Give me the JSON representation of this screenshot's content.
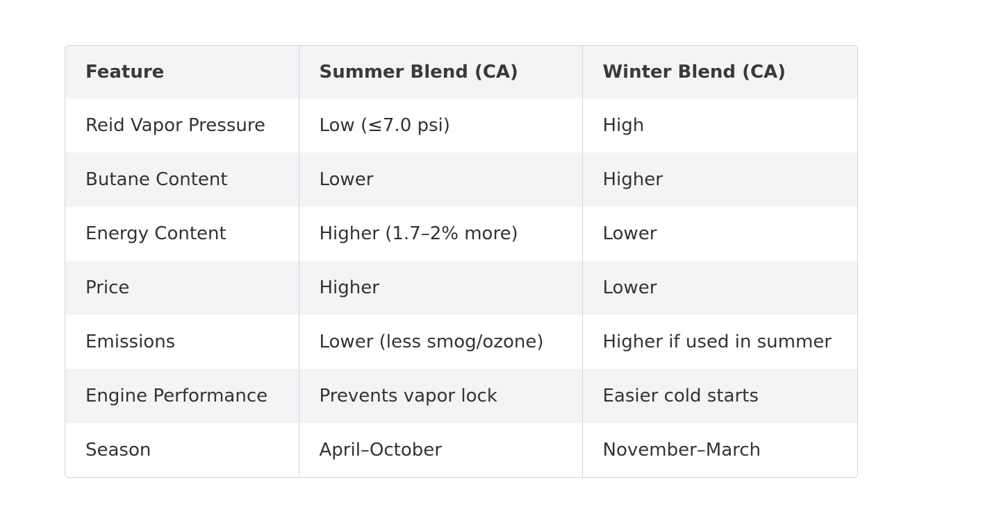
{
  "table": {
    "header": [
      "Feature",
      "Summer Blend (CA)",
      "Winter Blend (CA)"
    ],
    "rows": [
      [
        "Reid Vapor Pressure",
        "Low (≤7.0 psi)",
        "High"
      ],
      [
        "Butane Content",
        "Lower",
        "Higher"
      ],
      [
        "Energy Content",
        "Higher (1.7–2% more)",
        "Lower"
      ],
      [
        "Price",
        "Higher",
        "Lower"
      ],
      [
        "Emissions",
        "Lower (less smog/ozone)",
        "Higher if used in summer"
      ],
      [
        "Engine Performance",
        "Prevents vapor lock",
        "Easier cold starts"
      ],
      [
        "Season",
        "April–October",
        "November–March"
      ]
    ]
  }
}
